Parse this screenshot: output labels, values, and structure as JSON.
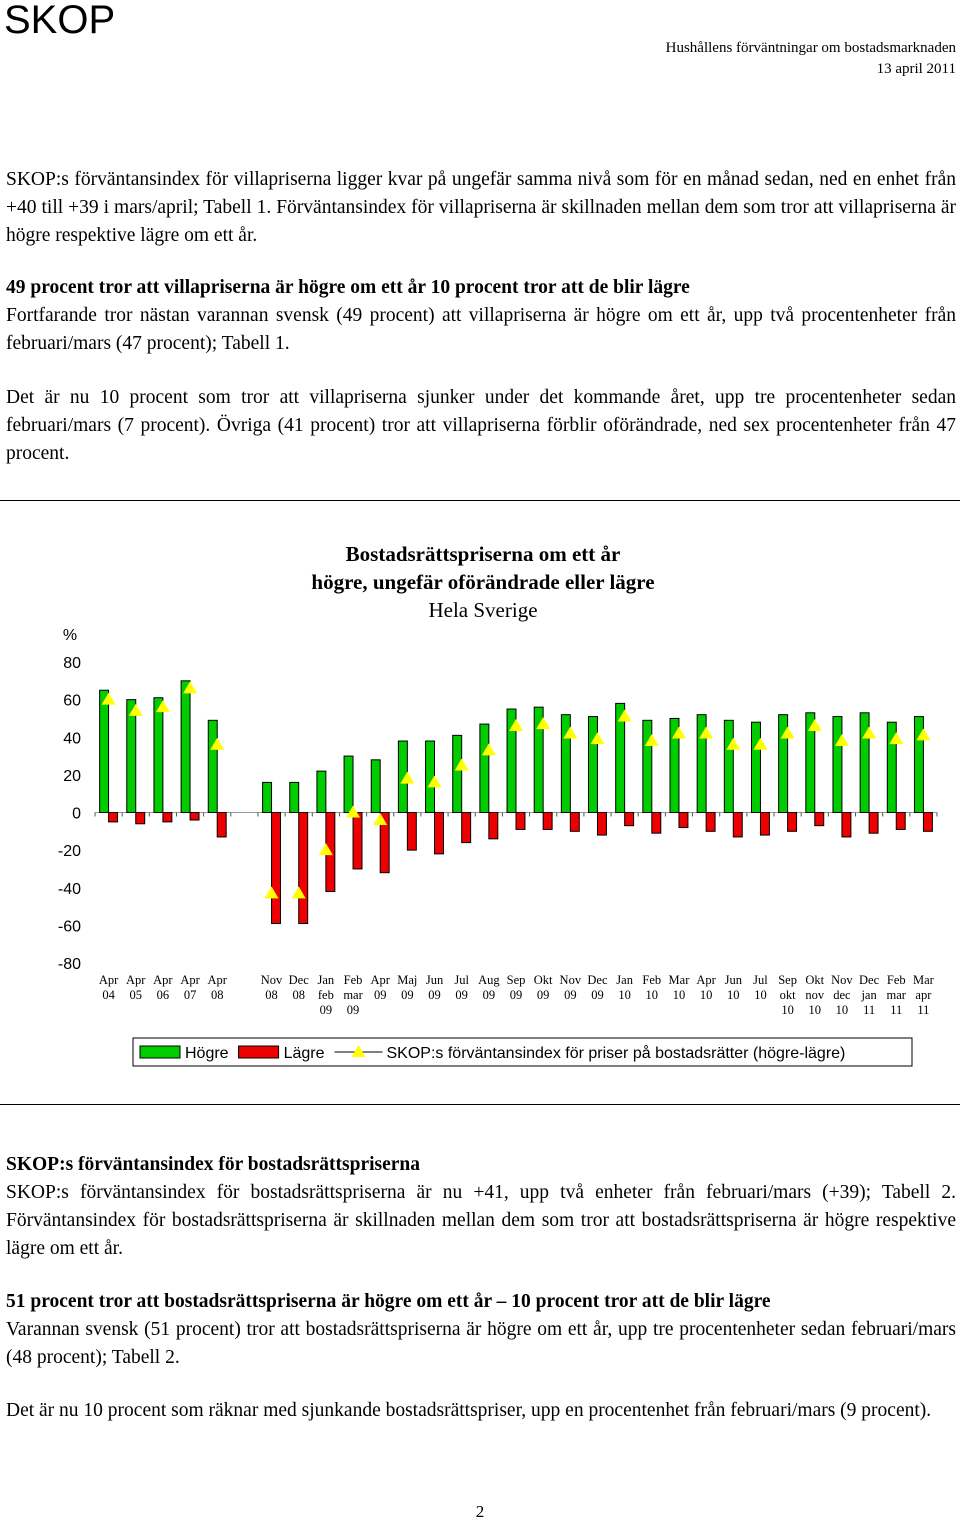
{
  "header": {
    "brand": "SKOP",
    "report": "Hushållens förväntningar om bostadsmarknaden",
    "date": "13 april 2011"
  },
  "section1": {
    "intro": "SKOP:s förväntansindex för villapriserna ligger kvar på ungefär samma nivå som för en månad sedan, ned en enhet från +40 till +39 i mars/april; Tabell 1. Förväntansindex för villapriserna är skillnaden mellan dem som tror att villapriserna är högre respektive lägre om ett år.",
    "heading": "49 procent tror att villapriserna är högre om ett år 10 procent tror att de blir lägre",
    "p1": "Fortfarande tror nästan varannan svensk (49 procent) att villapriserna är högre om ett år, upp två procentenheter från februari/mars (47 procent); Tabell 1.",
    "p2": "Det är nu 10 procent som tror att villapriserna sjunker under det kommande året, upp tre procentenheter sedan februari/mars (7 procent). Övriga (41 procent) tror att villapriserna förblir oförändrade, ned sex procentenheter från 47 procent."
  },
  "chart_data": {
    "type": "bar",
    "title": [
      "Bostadsrättspriserna om ett år",
      "högre, ungefär oförändrade eller lägre"
    ],
    "subtitle": "Hela Sverige",
    "ylabel": "%",
    "categories": [
      "Apr 04",
      "Apr 05",
      "Apr 06",
      "Apr 07",
      "Apr 08",
      null,
      "Nov 08",
      "Dec 08",
      "Jan feb 09",
      "Feb mar 09",
      "Apr 09",
      "Maj 09",
      "Jun 09",
      "Jul 09",
      "Aug 09",
      "Sep 09",
      "Okt 09",
      "Nov 09",
      "Dec 09",
      "Jan 10",
      "Feb 10",
      "Mar 10",
      "Apr 10",
      "Jun 10",
      "Jul 10",
      "Sep okt 10",
      "Okt nov 10",
      "Nov dec 10",
      "Dec jan 11",
      "Feb mar 11",
      "Mar apr 11"
    ],
    "series": [
      {
        "name": "Högre",
        "color": "#00cc00",
        "values": [
          65,
          60,
          61,
          70,
          49,
          null,
          16,
          16,
          22,
          30,
          28,
          38,
          38,
          41,
          47,
          55,
          56,
          52,
          51,
          58,
          49,
          50,
          52,
          49,
          48,
          52,
          53,
          51,
          53,
          48,
          51
        ]
      },
      {
        "name": "Lägre",
        "color": "#ee0000",
        "values": [
          -5,
          -6,
          -5,
          -4,
          -13,
          null,
          -59,
          -59,
          -42,
          -30,
          -32,
          -20,
          -22,
          -16,
          -14,
          -9,
          -9,
          -10,
          -12,
          -7,
          -11,
          -8,
          -10,
          -13,
          -12,
          -10,
          -7,
          -13,
          -11,
          -9,
          -10
        ]
      },
      {
        "name": "SKOP:s förväntansindex för priser på bostadsrätter (högre-lägre)",
        "color": "#ffff00",
        "marker": "triangle",
        "values": [
          60,
          54,
          56,
          66,
          36,
          null,
          -43,
          -43,
          -20,
          0,
          -4,
          18,
          16,
          25,
          33,
          46,
          47,
          42,
          39,
          51,
          38,
          42,
          42,
          36,
          36,
          42,
          46,
          38,
          42,
          39,
          41
        ]
      }
    ],
    "ylim": [
      -80,
      80
    ],
    "yticks": [
      -80,
      -60,
      -40,
      -20,
      0,
      20,
      40,
      60,
      80
    ],
    "legend": "bottom"
  },
  "section2": {
    "heading": "SKOP:s förväntansindex för bostadsrättspriserna",
    "p1": "SKOP:s förväntansindex för bostadsrättspriserna är nu +41, upp två enheter från februari/mars (+39); Tabell 2. Förväntansindex för bostadsrättspriserna är skillnaden mellan dem som tror att bostadsrättspriserna är högre respektive lägre om ett år.",
    "heading2": "51 procent tror att bostadsrättspriserna är högre om ett år – 10 procent tror att de blir lägre",
    "p2": "Varannan svensk (51 procent) tror att bostadsrättspriserna är högre om ett år, upp tre procentenheter sedan februari/mars (48 procent); Tabell 2.",
    "p3": "Det är nu 10 procent som räknar med sjunkande bostadsrättspriser, upp en procentenhet från februari/mars (9 procent)."
  },
  "page_number": "2"
}
